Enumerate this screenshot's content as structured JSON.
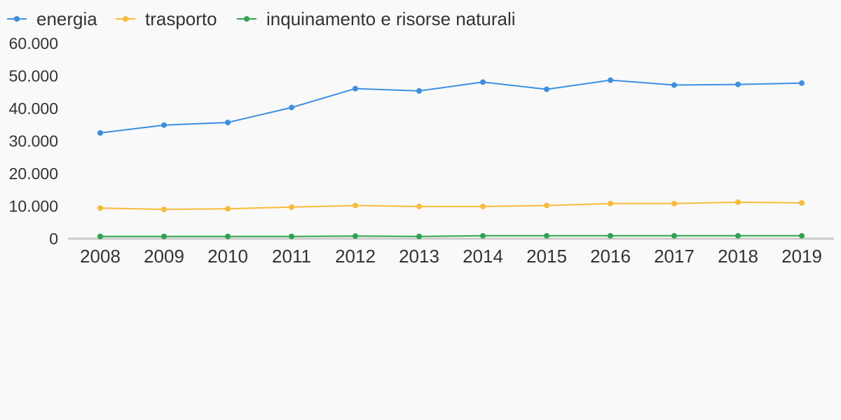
{
  "chart_data": {
    "type": "line",
    "categories": [
      "2008",
      "2009",
      "2010",
      "2011",
      "2012",
      "2013",
      "2014",
      "2015",
      "2016",
      "2017",
      "2018",
      "2019"
    ],
    "ylim": [
      0,
      60000
    ],
    "yticks": [
      0,
      10000,
      20000,
      30000,
      40000,
      50000,
      60000
    ],
    "ytick_labels": [
      "0",
      "10.000",
      "20.000",
      "30.000",
      "40.000",
      "50.000",
      "60.000"
    ],
    "legend_position": "top-left",
    "grid": false,
    "series": [
      {
        "name": "energia",
        "color": "#3b8fe3",
        "values": [
          32500,
          34900,
          35700,
          40300,
          46100,
          45400,
          48100,
          45900,
          48700,
          47200,
          47400,
          47800
        ]
      },
      {
        "name": "trasporto",
        "color": "#f9bb37",
        "values": [
          9400,
          9000,
          9200,
          9700,
          10200,
          9900,
          9900,
          10200,
          10800,
          10800,
          11200,
          11000
        ]
      },
      {
        "name": "inquinamento e risorse naturali",
        "color": "#2ea44f",
        "values": [
          700,
          700,
          700,
          700,
          800,
          700,
          900,
          900,
          900,
          900,
          900,
          900
        ]
      }
    ]
  }
}
